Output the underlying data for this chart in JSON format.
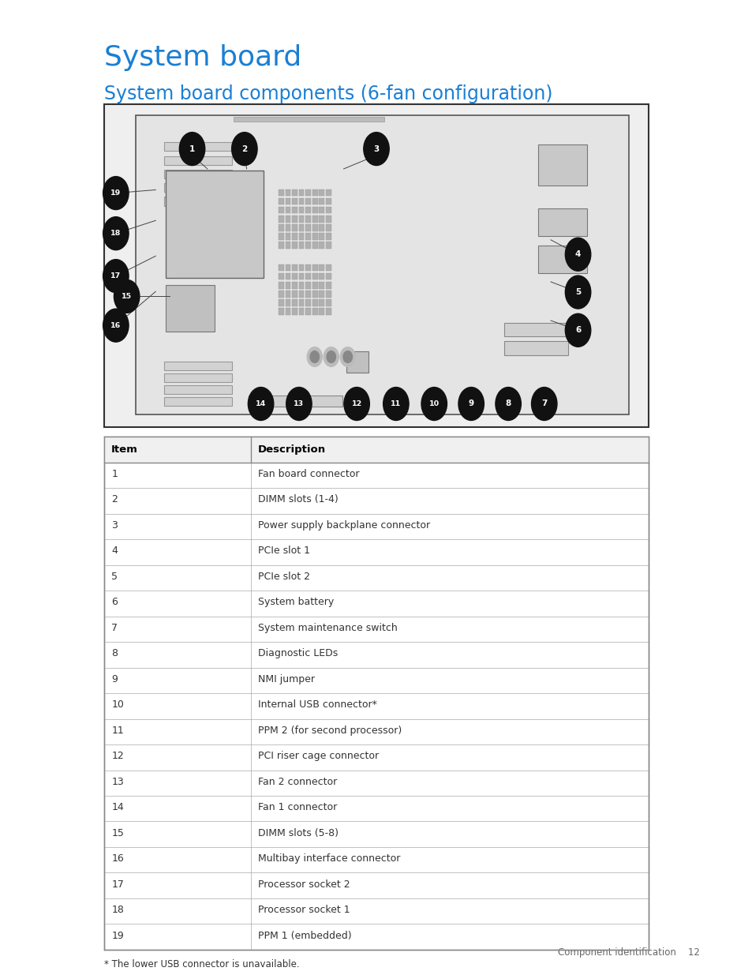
{
  "title": "System board",
  "subtitle": "System board components (6-fan configuration)",
  "title_color": "#1a7fd4",
  "subtitle_color": "#1a7fd4",
  "bg_color": "#ffffff",
  "table_header": [
    "Item",
    "Description"
  ],
  "table_rows": [
    [
      "1",
      "Fan board connector"
    ],
    [
      "2",
      "DIMM slots (1-4)"
    ],
    [
      "3",
      "Power supply backplane connector"
    ],
    [
      "4",
      "PCIe slot 1"
    ],
    [
      "5",
      "PCIe slot 2"
    ],
    [
      "6",
      "System battery"
    ],
    [
      "7",
      "System maintenance switch"
    ],
    [
      "8",
      "Diagnostic LEDs"
    ],
    [
      "9",
      "NMI jumper"
    ],
    [
      "10",
      "Internal USB connector*"
    ],
    [
      "11",
      "PPM 2 (for second processor)"
    ],
    [
      "12",
      "PCI riser cage connector"
    ],
    [
      "13",
      "Fan 2 connector"
    ],
    [
      "14",
      "Fan 1 connector"
    ],
    [
      "15",
      "DIMM slots (5-8)"
    ],
    [
      "16",
      "Multibay interface connector"
    ],
    [
      "17",
      "Processor socket 2"
    ],
    [
      "18",
      "Processor socket 1"
    ],
    [
      "19",
      "PPM 1 (embedded)"
    ]
  ],
  "footnote": "* The lower USB connector is unavailable.",
  "footer_text": "Component identification    12",
  "callout_bg": "#111111",
  "callout_fg": "#ffffff",
  "diagram_border": "#333333"
}
